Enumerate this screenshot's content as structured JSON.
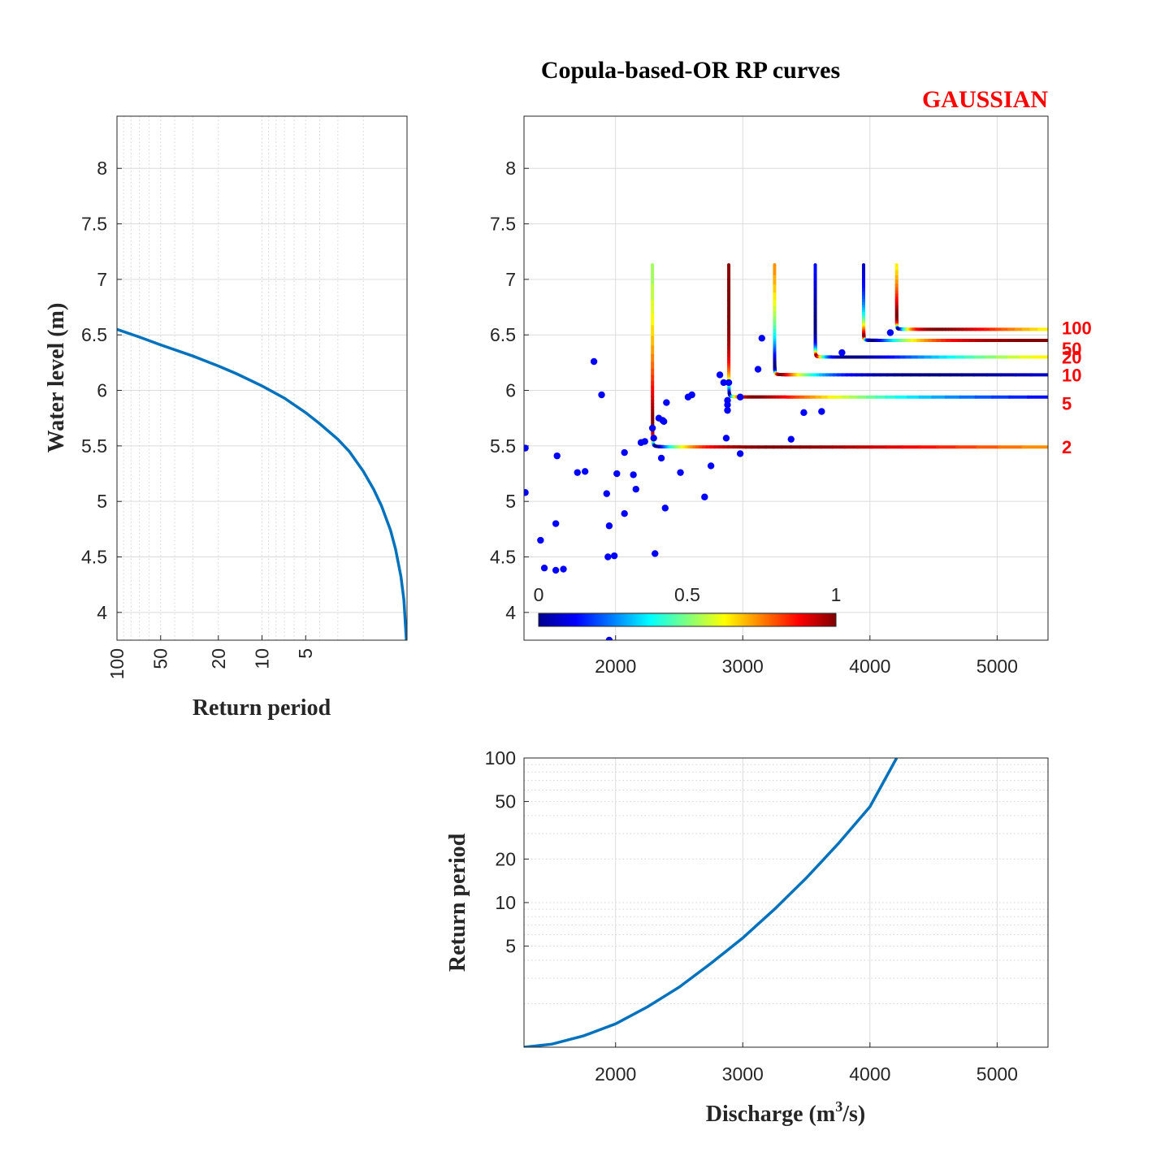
{
  "title": "Copula-based-OR RP curves",
  "copula_family": "GAUSSIAN",
  "colors": {
    "curve_blue": "#0072BD",
    "point_blue": "#0000ff",
    "label_red": "#ff0000"
  },
  "colorbar": {
    "colormap": "jet",
    "ticks": [
      "0",
      "0.5",
      "1"
    ],
    "range": [
      0,
      1
    ]
  },
  "chart_data": [
    {
      "id": "left",
      "type": "line",
      "xlabel": "Return period",
      "ylabel": "Water level (m)",
      "xscale": "log-reversed",
      "xticks": [
        "100",
        "50",
        "20",
        "10",
        "5"
      ],
      "yticks": [
        "4",
        "4.5",
        "5",
        "5.5",
        "6",
        "6.5",
        "7",
        "7.5",
        "8"
      ],
      "ylim": [
        3.75,
        8.47
      ],
      "grid": true,
      "series": [
        {
          "x": [
            100,
            70,
            50,
            30,
            20,
            15,
            10,
            7,
            5,
            4,
            3,
            2.5,
            2,
            1.7,
            1.5,
            1.3,
            1.2,
            1.1,
            1.05,
            1.01
          ],
          "y": [
            6.55,
            6.48,
            6.41,
            6.31,
            6.22,
            6.15,
            6.04,
            5.93,
            5.8,
            5.7,
            5.56,
            5.45,
            5.27,
            5.11,
            4.96,
            4.74,
            4.57,
            4.32,
            4.11,
            3.75
          ]
        }
      ]
    },
    {
      "id": "main",
      "type": "scatter",
      "xlim": [
        1280,
        5400
      ],
      "ylim": [
        3.75,
        8.47
      ],
      "xticks": [
        "2000",
        "3000",
        "4000",
        "5000"
      ],
      "yticks": [
        "4",
        "4.5",
        "5",
        "5.5",
        "6",
        "6.5",
        "7",
        "7.5",
        "8"
      ],
      "grid": true,
      "points": [
        [
          1290,
          5.48
        ],
        [
          1290,
          5.08
        ],
        [
          1410,
          4.65
        ],
        [
          1440,
          4.4
        ],
        [
          1530,
          4.38
        ],
        [
          1590,
          4.39
        ],
        [
          1530,
          4.8
        ],
        [
          1540,
          5.41
        ],
        [
          1700,
          5.26
        ],
        [
          1760,
          5.27
        ],
        [
          1830,
          6.26
        ],
        [
          1890,
          5.96
        ],
        [
          1930,
          5.07
        ],
        [
          1940,
          4.5
        ],
        [
          1950,
          4.78
        ],
        [
          1990,
          4.51
        ],
        [
          2010,
          5.25
        ],
        [
          2070,
          5.44
        ],
        [
          2070,
          4.89
        ],
        [
          2140,
          5.24
        ],
        [
          2160,
          5.11
        ],
        [
          2200,
          5.53
        ],
        [
          2230,
          5.54
        ],
        [
          2290,
          5.66
        ],
        [
          2300,
          5.57
        ],
        [
          2310,
          4.53
        ],
        [
          2340,
          5.75
        ],
        [
          2360,
          5.39
        ],
        [
          2370,
          5.73
        ],
        [
          2380,
          5.72
        ],
        [
          2390,
          4.94
        ],
        [
          2400,
          5.89
        ],
        [
          2510,
          5.26
        ],
        [
          2570,
          5.94
        ],
        [
          2600,
          5.96
        ],
        [
          2700,
          5.04
        ],
        [
          2750,
          5.32
        ],
        [
          2820,
          6.14
        ],
        [
          2850,
          6.07
        ],
        [
          2870,
          5.57
        ],
        [
          2880,
          5.87
        ],
        [
          2880,
          5.91
        ],
        [
          2880,
          5.82
        ],
        [
          2890,
          6.07
        ],
        [
          2980,
          5.94
        ],
        [
          2980,
          5.43
        ],
        [
          3120,
          6.19
        ],
        [
          3150,
          6.47
        ],
        [
          3380,
          5.56
        ],
        [
          3480,
          5.8
        ],
        [
          3620,
          5.81
        ],
        [
          3780,
          6.34
        ],
        [
          4160,
          6.52
        ],
        [
          1950,
          3.75
        ]
      ],
      "rp_curves": [
        {
          "label": "2",
          "x_vertical": 2290,
          "y_asymptote": 5.49
        },
        {
          "label": "5",
          "x_vertical": 2890,
          "y_asymptote": 5.94
        },
        {
          "label": "10",
          "x_vertical": 3250,
          "y_asymptote": 6.14
        },
        {
          "label": "20",
          "x_vertical": 3570,
          "y_asymptote": 6.3
        },
        {
          "label": "50",
          "x_vertical": 3950,
          "y_asymptote": 6.45
        },
        {
          "label": "100",
          "x_vertical": 4210,
          "y_asymptote": 6.55
        }
      ],
      "curve_top": 7.13
    },
    {
      "id": "bottom",
      "type": "line",
      "xlabel": "Discharge (m3/s)",
      "ylabel": "Return period",
      "yscale": "log",
      "xlim": [
        1280,
        5400
      ],
      "ylim": [
        1,
        100
      ],
      "xticks": [
        "2000",
        "3000",
        "4000",
        "5000"
      ],
      "yticks": [
        "5",
        "10",
        "20",
        "50",
        "100"
      ],
      "grid": true,
      "series": [
        {
          "x": [
            1280,
            1500,
            1750,
            2000,
            2250,
            2500,
            2750,
            3000,
            3250,
            3500,
            3750,
            4000,
            4210
          ],
          "y": [
            1.0,
            1.05,
            1.2,
            1.45,
            1.9,
            2.6,
            3.8,
            5.7,
            9.0,
            14.8,
            25.5,
            46,
            100
          ]
        }
      ]
    }
  ],
  "labels": {
    "left_xlabel": "Return period",
    "left_ylabel": "Water level (m)",
    "bottom_xlabel_pre": "Discharge (m",
    "bottom_xlabel_sup": "3",
    "bottom_xlabel_post": "/s)",
    "bottom_ylabel": "Return period"
  }
}
